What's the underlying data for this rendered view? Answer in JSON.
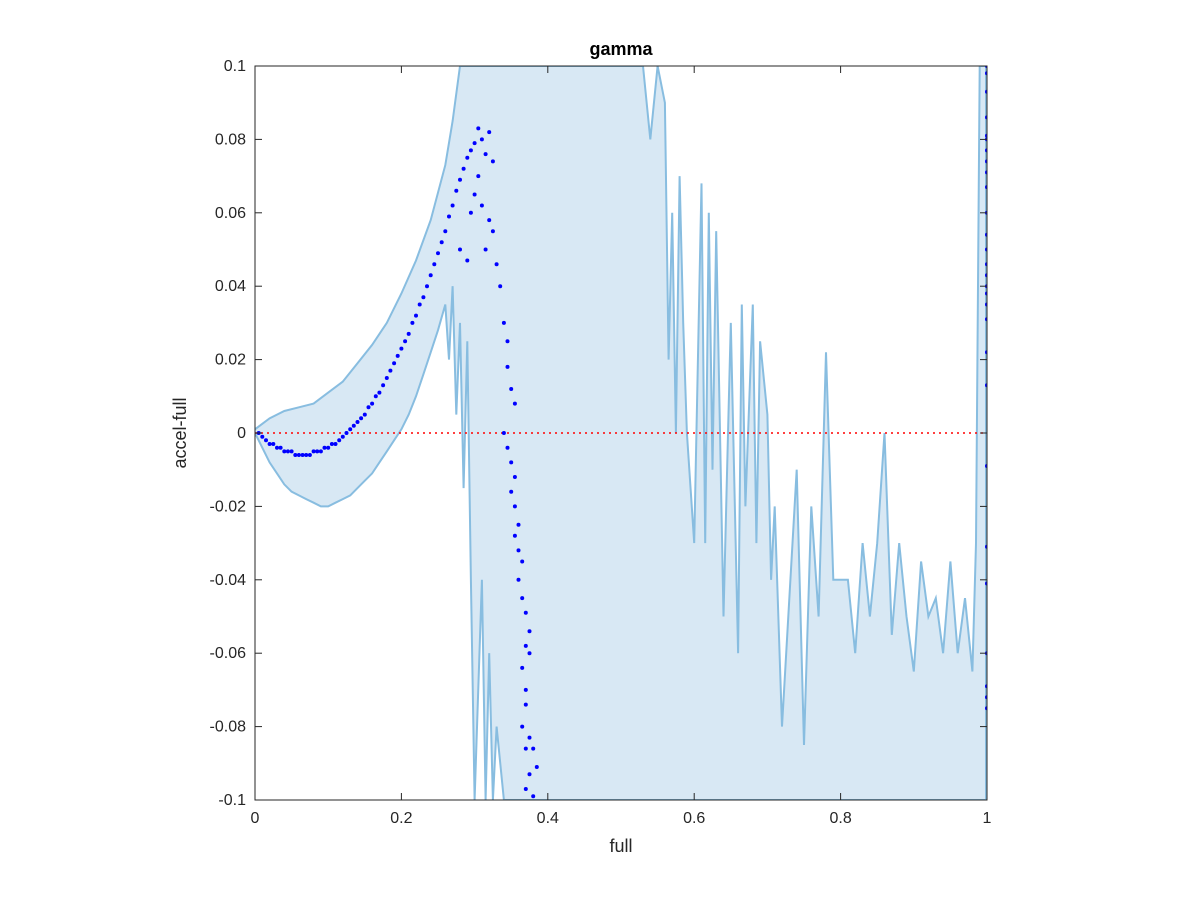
{
  "chart_data": {
    "type": "scatter",
    "title": "gamma",
    "xlabel": "full",
    "ylabel": "accel-full",
    "xlim": [
      0,
      1
    ],
    "ylim": [
      -0.1,
      0.1
    ],
    "xticks": [
      {
        "value": 0,
        "label": "0"
      },
      {
        "value": 0.2,
        "label": "0.2"
      },
      {
        "value": 0.4,
        "label": "0.4"
      },
      {
        "value": 0.6,
        "label": "0.6"
      },
      {
        "value": 0.8,
        "label": "0.8"
      },
      {
        "value": 1,
        "label": "1"
      }
    ],
    "yticks": [
      {
        "value": -0.1,
        "label": "-0.1"
      },
      {
        "value": -0.08,
        "label": "-0.08"
      },
      {
        "value": -0.06,
        "label": "-0.06"
      },
      {
        "value": -0.04,
        "label": "-0.04"
      },
      {
        "value": -0.02,
        "label": "-0.02"
      },
      {
        "value": 0,
        "label": "0"
      },
      {
        "value": 0.02,
        "label": "0.02"
      },
      {
        "value": 0.04,
        "label": "0.04"
      },
      {
        "value": 0.06,
        "label": "0.06"
      },
      {
        "value": 0.08,
        "label": "0.08"
      },
      {
        "value": 0.1,
        "label": "0.1"
      }
    ],
    "grid": false,
    "colors": {
      "points": "#0000ff",
      "band_fill": "#d8e8f4",
      "band_line": "#88bde0",
      "reference_line": "#ff0000",
      "axes": "#262626"
    },
    "reference_line": {
      "y": 0,
      "style": "dotted"
    },
    "band_upper": [
      [
        0,
        0.001
      ],
      [
        0.02,
        0.004
      ],
      [
        0.04,
        0.006
      ],
      [
        0.06,
        0.007
      ],
      [
        0.08,
        0.008
      ],
      [
        0.1,
        0.011
      ],
      [
        0.12,
        0.014
      ],
      [
        0.14,
        0.019
      ],
      [
        0.16,
        0.024
      ],
      [
        0.18,
        0.03
      ],
      [
        0.2,
        0.038
      ],
      [
        0.22,
        0.047
      ],
      [
        0.24,
        0.058
      ],
      [
        0.26,
        0.073
      ],
      [
        0.27,
        0.085
      ],
      [
        0.28,
        0.1
      ],
      [
        0.53,
        0.1
      ],
      [
        0.54,
        0.08
      ],
      [
        0.55,
        0.1
      ],
      [
        0.56,
        0.09
      ],
      [
        0.565,
        0.02
      ],
      [
        0.57,
        0.06
      ],
      [
        0.575,
        0.0
      ],
      [
        0.58,
        0.07
      ],
      [
        0.585,
        0.03
      ],
      [
        0.59,
        0.0
      ],
      [
        0.6,
        -0.03
      ],
      [
        0.61,
        0.068
      ],
      [
        0.615,
        -0.03
      ],
      [
        0.62,
        0.06
      ],
      [
        0.625,
        -0.01
      ],
      [
        0.63,
        0.055
      ],
      [
        0.64,
        -0.05
      ],
      [
        0.645,
        -0.01
      ],
      [
        0.65,
        0.03
      ],
      [
        0.66,
        -0.06
      ],
      [
        0.665,
        0.035
      ],
      [
        0.67,
        -0.02
      ],
      [
        0.68,
        0.035
      ],
      [
        0.685,
        -0.03
      ],
      [
        0.69,
        0.025
      ],
      [
        0.7,
        0.005
      ],
      [
        0.705,
        -0.04
      ],
      [
        0.71,
        -0.02
      ],
      [
        0.72,
        -0.08
      ],
      [
        0.74,
        -0.01
      ],
      [
        0.75,
        -0.085
      ],
      [
        0.76,
        -0.02
      ],
      [
        0.77,
        -0.05
      ],
      [
        0.78,
        0.022
      ],
      [
        0.79,
        -0.04
      ],
      [
        0.8,
        -0.04
      ],
      [
        0.81,
        -0.04
      ],
      [
        0.82,
        -0.06
      ],
      [
        0.83,
        -0.03
      ],
      [
        0.84,
        -0.05
      ],
      [
        0.85,
        -0.03
      ],
      [
        0.86,
        0.0
      ],
      [
        0.87,
        -0.055
      ],
      [
        0.88,
        -0.03
      ],
      [
        0.89,
        -0.05
      ],
      [
        0.9,
        -0.065
      ],
      [
        0.91,
        -0.035
      ],
      [
        0.92,
        -0.05
      ],
      [
        0.93,
        -0.045
      ],
      [
        0.94,
        -0.06
      ],
      [
        0.95,
        -0.035
      ],
      [
        0.96,
        -0.06
      ],
      [
        0.97,
        -0.045
      ],
      [
        0.975,
        -0.055
      ],
      [
        0.98,
        -0.065
      ],
      [
        0.985,
        -0.03
      ],
      [
        0.99,
        0.1
      ],
      [
        1.0,
        0.1
      ]
    ],
    "band_lower": [
      [
        0,
        0.0
      ],
      [
        0.01,
        -0.004
      ],
      [
        0.02,
        -0.008
      ],
      [
        0.03,
        -0.011
      ],
      [
        0.04,
        -0.014
      ],
      [
        0.05,
        -0.016
      ],
      [
        0.06,
        -0.017
      ],
      [
        0.07,
        -0.018
      ],
      [
        0.08,
        -0.019
      ],
      [
        0.09,
        -0.02
      ],
      [
        0.1,
        -0.02
      ],
      [
        0.11,
        -0.019
      ],
      [
        0.12,
        -0.018
      ],
      [
        0.13,
        -0.017
      ],
      [
        0.14,
        -0.015
      ],
      [
        0.15,
        -0.013
      ],
      [
        0.16,
        -0.011
      ],
      [
        0.17,
        -0.008
      ],
      [
        0.18,
        -0.005
      ],
      [
        0.19,
        -0.002
      ],
      [
        0.2,
        0.001
      ],
      [
        0.21,
        0.005
      ],
      [
        0.22,
        0.01
      ],
      [
        0.23,
        0.016
      ],
      [
        0.24,
        0.022
      ],
      [
        0.25,
        0.028
      ],
      [
        0.26,
        0.035
      ],
      [
        0.265,
        0.02
      ],
      [
        0.27,
        0.04
      ],
      [
        0.275,
        0.005
      ],
      [
        0.28,
        0.03
      ],
      [
        0.285,
        -0.015
      ],
      [
        0.29,
        0.025
      ],
      [
        0.295,
        -0.04
      ],
      [
        0.3,
        -0.1
      ],
      [
        0.31,
        -0.04
      ],
      [
        0.315,
        -0.1
      ],
      [
        0.32,
        -0.06
      ],
      [
        0.325,
        -0.1
      ],
      [
        0.33,
        -0.08
      ],
      [
        0.34,
        -0.1
      ],
      [
        0.5,
        -0.1
      ],
      [
        0.55,
        -0.1
      ],
      [
        0.6,
        -0.1
      ],
      [
        0.65,
        -0.1
      ],
      [
        0.7,
        -0.1
      ],
      [
        0.75,
        -0.1
      ],
      [
        0.8,
        -0.1
      ],
      [
        0.85,
        -0.1
      ],
      [
        0.9,
        -0.1
      ],
      [
        0.95,
        -0.1
      ],
      [
        1.0,
        -0.1
      ]
    ],
    "points_curve": [
      [
        0.005,
        0.0
      ],
      [
        0.01,
        -0.001
      ],
      [
        0.015,
        -0.002
      ],
      [
        0.02,
        -0.003
      ],
      [
        0.025,
        -0.003
      ],
      [
        0.03,
        -0.004
      ],
      [
        0.035,
        -0.004
      ],
      [
        0.04,
        -0.005
      ],
      [
        0.045,
        -0.005
      ],
      [
        0.05,
        -0.005
      ],
      [
        0.055,
        -0.006
      ],
      [
        0.06,
        -0.006
      ],
      [
        0.065,
        -0.006
      ],
      [
        0.07,
        -0.006
      ],
      [
        0.075,
        -0.006
      ],
      [
        0.08,
        -0.005
      ],
      [
        0.085,
        -0.005
      ],
      [
        0.09,
        -0.005
      ],
      [
        0.095,
        -0.004
      ],
      [
        0.1,
        -0.004
      ],
      [
        0.105,
        -0.003
      ],
      [
        0.11,
        -0.003
      ],
      [
        0.115,
        -0.002
      ],
      [
        0.12,
        -0.001
      ],
      [
        0.125,
        0.0
      ],
      [
        0.13,
        0.001
      ],
      [
        0.135,
        0.002
      ],
      [
        0.14,
        0.003
      ],
      [
        0.145,
        0.004
      ],
      [
        0.15,
        0.005
      ],
      [
        0.155,
        0.007
      ],
      [
        0.16,
        0.008
      ],
      [
        0.165,
        0.01
      ],
      [
        0.17,
        0.011
      ],
      [
        0.175,
        0.013
      ],
      [
        0.18,
        0.015
      ],
      [
        0.185,
        0.017
      ],
      [
        0.19,
        0.019
      ],
      [
        0.195,
        0.021
      ],
      [
        0.2,
        0.023
      ],
      [
        0.205,
        0.025
      ],
      [
        0.21,
        0.027
      ],
      [
        0.215,
        0.03
      ],
      [
        0.22,
        0.032
      ],
      [
        0.225,
        0.035
      ],
      [
        0.23,
        0.037
      ],
      [
        0.235,
        0.04
      ],
      [
        0.24,
        0.043
      ],
      [
        0.245,
        0.046
      ],
      [
        0.25,
        0.049
      ],
      [
        0.255,
        0.052
      ],
      [
        0.26,
        0.055
      ],
      [
        0.265,
        0.059
      ],
      [
        0.27,
        0.062
      ],
      [
        0.275,
        0.066
      ],
      [
        0.28,
        0.069
      ],
      [
        0.285,
        0.072
      ],
      [
        0.29,
        0.075
      ],
      [
        0.295,
        0.077
      ],
      [
        0.3,
        0.079
      ],
      [
        0.305,
        0.083
      ],
      [
        0.31,
        0.08
      ],
      [
        0.315,
        0.076
      ],
      [
        0.32,
        0.082
      ],
      [
        0.325,
        0.074
      ]
    ],
    "points_descent": [
      [
        0.28,
        0.05
      ],
      [
        0.29,
        0.047
      ],
      [
        0.295,
        0.06
      ],
      [
        0.3,
        0.065
      ],
      [
        0.305,
        0.07
      ],
      [
        0.31,
        0.062
      ],
      [
        0.315,
        0.05
      ],
      [
        0.32,
        0.058
      ],
      [
        0.325,
        0.055
      ],
      [
        0.33,
        0.046
      ],
      [
        0.335,
        0.04
      ],
      [
        0.34,
        0.03
      ],
      [
        0.345,
        0.025
      ],
      [
        0.345,
        0.018
      ],
      [
        0.35,
        0.012
      ],
      [
        0.355,
        0.008
      ],
      [
        0.34,
        0.0
      ],
      [
        0.345,
        -0.004
      ],
      [
        0.35,
        -0.008
      ],
      [
        0.355,
        -0.012
      ],
      [
        0.35,
        -0.016
      ],
      [
        0.355,
        -0.02
      ],
      [
        0.36,
        -0.025
      ],
      [
        0.355,
        -0.028
      ],
      [
        0.36,
        -0.032
      ],
      [
        0.365,
        -0.035
      ],
      [
        0.36,
        -0.04
      ],
      [
        0.365,
        -0.045
      ],
      [
        0.37,
        -0.049
      ],
      [
        0.375,
        -0.054
      ],
      [
        0.37,
        -0.058
      ],
      [
        0.375,
        -0.06
      ],
      [
        0.365,
        -0.064
      ],
      [
        0.37,
        -0.07
      ],
      [
        0.37,
        -0.074
      ],
      [
        0.365,
        -0.08
      ],
      [
        0.375,
        -0.083
      ],
      [
        0.38,
        -0.086
      ],
      [
        0.37,
        -0.086
      ],
      [
        0.385,
        -0.091
      ],
      [
        0.375,
        -0.093
      ],
      [
        0.37,
        -0.097
      ],
      [
        0.38,
        -0.099
      ]
    ],
    "points_edge": [
      [
        1.0,
        0.1
      ],
      [
        1.0,
        0.098
      ],
      [
        1.0,
        0.093
      ],
      [
        1.0,
        0.086
      ],
      [
        1.0,
        0.081
      ],
      [
        1.0,
        0.08
      ],
      [
        1.0,
        0.077
      ],
      [
        1.0,
        0.074
      ],
      [
        1.0,
        0.071
      ],
      [
        1.0,
        0.067
      ],
      [
        1.0,
        0.06
      ],
      [
        1.0,
        0.054
      ],
      [
        1.0,
        0.05
      ],
      [
        1.0,
        0.046
      ],
      [
        1.0,
        0.043
      ],
      [
        1.0,
        0.04
      ],
      [
        1.0,
        0.038
      ],
      [
        1.0,
        0.035
      ],
      [
        1.0,
        0.031
      ],
      [
        1.0,
        0.022
      ],
      [
        1.0,
        0.013
      ],
      [
        1.0,
        -0.009
      ],
      [
        1.0,
        -0.031
      ],
      [
        1.0,
        -0.041
      ],
      [
        1.0,
        -0.06
      ],
      [
        1.0,
        -0.069
      ],
      [
        1.0,
        -0.072
      ],
      [
        1.0,
        -0.075
      ]
    ]
  }
}
